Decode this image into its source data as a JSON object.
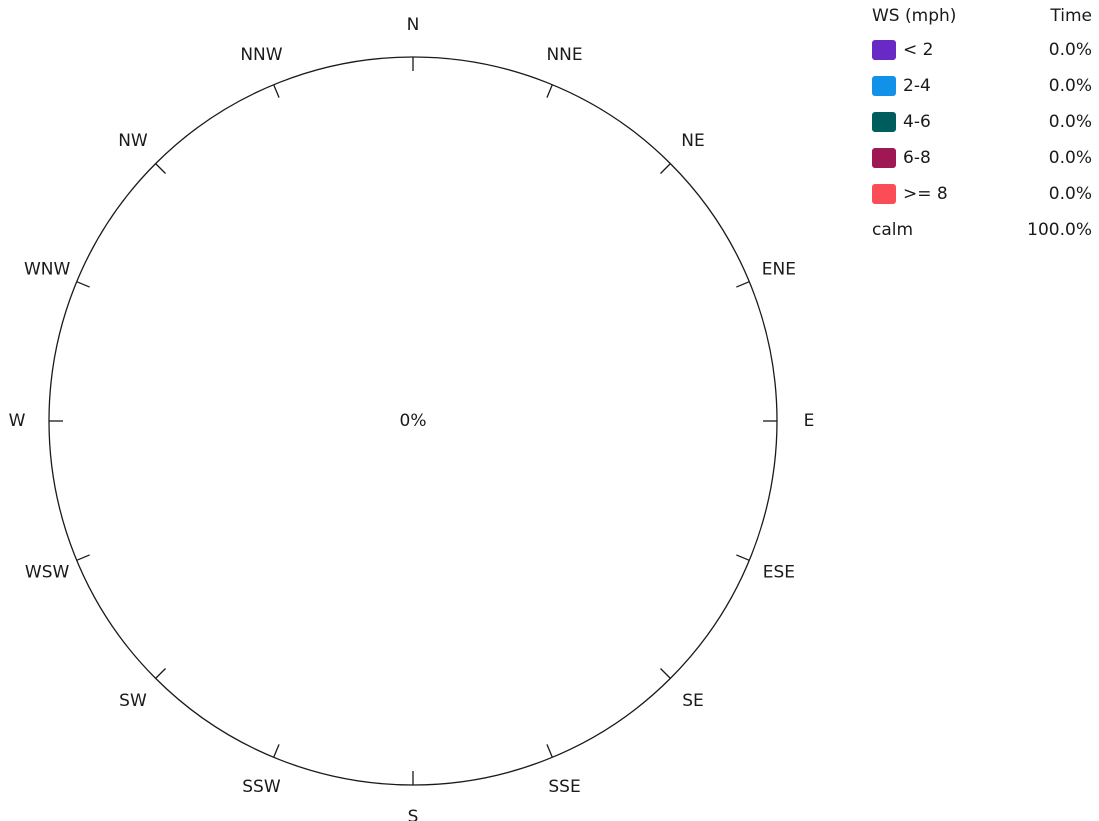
{
  "chart_data": {
    "type": "windrose",
    "directions": [
      "N",
      "NNE",
      "NE",
      "ENE",
      "E",
      "ESE",
      "SE",
      "SSE",
      "S",
      "SSW",
      "SW",
      "WSW",
      "W",
      "WNW",
      "NW",
      "NNW"
    ],
    "center_label": "0%",
    "legend": {
      "header_left": "WS (mph)",
      "header_right": "Time",
      "bins": [
        {
          "label": "< 2",
          "value": "0.0%",
          "color": "#6929c4"
        },
        {
          "label": "2-4",
          "value": "0.0%",
          "color": "#1192e8"
        },
        {
          "label": "4-6",
          "value": "0.0%",
          "color": "#005d5d"
        },
        {
          "label": "6-8",
          "value": "0.0%",
          "color": "#9f1853"
        },
        {
          "label": ">= 8",
          "value": "0.0%",
          "color": "#fa4d56"
        }
      ],
      "calm": {
        "label": "calm",
        "value": "100.0%"
      }
    },
    "series": [
      {
        "name": "< 2",
        "values": [
          0,
          0,
          0,
          0,
          0,
          0,
          0,
          0,
          0,
          0,
          0,
          0,
          0,
          0,
          0,
          0
        ]
      },
      {
        "name": "2-4",
        "values": [
          0,
          0,
          0,
          0,
          0,
          0,
          0,
          0,
          0,
          0,
          0,
          0,
          0,
          0,
          0,
          0
        ]
      },
      {
        "name": "4-6",
        "values": [
          0,
          0,
          0,
          0,
          0,
          0,
          0,
          0,
          0,
          0,
          0,
          0,
          0,
          0,
          0,
          0
        ]
      },
      {
        "name": "6-8",
        "values": [
          0,
          0,
          0,
          0,
          0,
          0,
          0,
          0,
          0,
          0,
          0,
          0,
          0,
          0,
          0,
          0
        ]
      },
      {
        "name": ">= 8",
        "values": [
          0,
          0,
          0,
          0,
          0,
          0,
          0,
          0,
          0,
          0,
          0,
          0,
          0,
          0,
          0,
          0
        ]
      }
    ]
  }
}
